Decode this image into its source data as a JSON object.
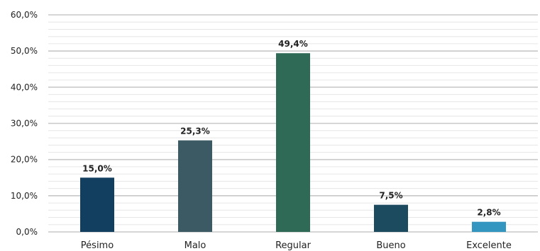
{
  "chart_data": {
    "type": "bar",
    "title": "",
    "xlabel": "",
    "ylabel": "",
    "ylim": [
      0,
      60
    ],
    "y_ticks": [
      "0,0%",
      "10,0%",
      "20,0%",
      "30,0%",
      "40,0%",
      "50,0%",
      "60,0%"
    ],
    "categories": [
      "Pésimo",
      "Malo",
      "Regular",
      "Bueno",
      "Excelente"
    ],
    "values": [
      15.0,
      25.3,
      49.4,
      7.5,
      2.8
    ],
    "value_labels": [
      "15,0%",
      "25,3%",
      "49,4%",
      "7,5%",
      "2,8%"
    ],
    "bar_colors": [
      "#123f5f",
      "#3b5a64",
      "#2f6a56",
      "#1c4a5e",
      "#3296c0"
    ],
    "grid": true,
    "legend": "none"
  }
}
